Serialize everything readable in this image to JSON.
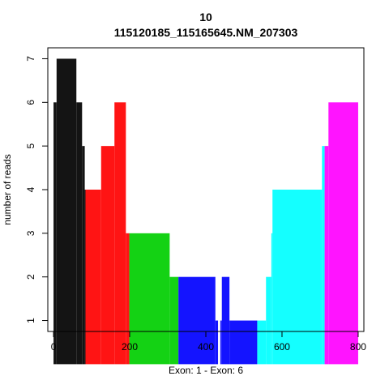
{
  "chart_data": {
    "type": "area",
    "title_line1": "10",
    "title_line2": "115120185_115165645.NM_207303",
    "xlabel": "Exon: 1 - Exon: 6",
    "ylabel": "number of reads",
    "xlim": [
      -15,
      815
    ],
    "ylim": [
      0.75,
      7.25
    ],
    "xticks": [
      0,
      200,
      400,
      600,
      800
    ],
    "yticks": [
      1,
      2,
      3,
      4,
      5,
      6,
      7
    ],
    "grid": false,
    "legend": "none",
    "series": [
      {
        "color": "#141414",
        "steps": [
          [
            0,
            6
          ],
          [
            8,
            7
          ],
          [
            60,
            6
          ],
          [
            75,
            5
          ],
          [
            82,
            4
          ]
        ],
        "end": 84
      },
      {
        "color": "#ff1414",
        "steps": [
          [
            84,
            4
          ],
          [
            125,
            5
          ],
          [
            160,
            6
          ],
          [
            190,
            3
          ]
        ],
        "end": 199
      },
      {
        "color": "#14d214",
        "steps": [
          [
            199,
            3
          ],
          [
            305,
            2
          ]
        ],
        "end": 328
      },
      {
        "color": "#1414ff",
        "steps": [
          [
            328,
            2
          ],
          [
            425,
            1
          ],
          [
            432,
            0
          ],
          [
            438,
            1
          ],
          [
            442,
            2
          ],
          [
            462,
            1
          ]
        ],
        "end": 535
      },
      {
        "color": "#14ffff",
        "steps": [
          [
            535,
            1
          ],
          [
            558,
            2
          ],
          [
            572,
            3
          ],
          [
            575,
            4
          ],
          [
            705,
            5
          ]
        ],
        "end": 712
      },
      {
        "color": "#ff14ff",
        "steps": [
          [
            712,
            5
          ],
          [
            722,
            6
          ]
        ],
        "end": 800
      }
    ]
  }
}
